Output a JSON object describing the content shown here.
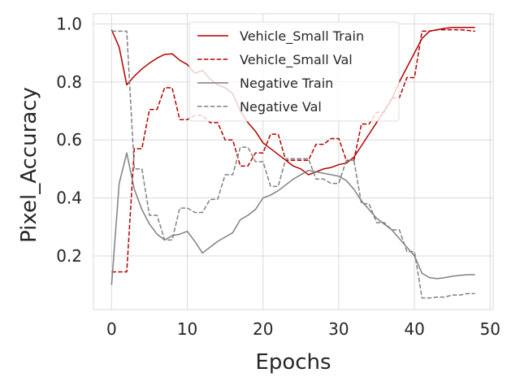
{
  "chart_data": {
    "type": "line",
    "title": "",
    "xlabel": "Epochs",
    "ylabel": "Pixel_Accuracy",
    "xlim": [
      -2.4,
      50.4
    ],
    "ylim": [
      0.015,
      1.035
    ],
    "xticks": [
      0,
      10,
      20,
      30,
      40,
      50
    ],
    "xtick_labels": [
      "0",
      "10",
      "20",
      "30",
      "40",
      "50"
    ],
    "yticks": [
      0.2,
      0.4,
      0.6,
      0.8,
      1.0
    ],
    "ytick_labels": [
      "0.2",
      "0.4",
      "0.6",
      "0.8",
      "1.0"
    ],
    "grid": true,
    "legend_position": "top-right",
    "x": [
      0,
      1,
      2,
      3,
      4,
      5,
      6,
      7,
      8,
      9,
      10,
      11,
      12,
      13,
      14,
      15,
      16,
      17,
      18,
      19,
      20,
      21,
      22,
      23,
      24,
      25,
      26,
      27,
      28,
      29,
      30,
      31,
      32,
      33,
      34,
      35,
      36,
      37,
      38,
      39,
      40,
      41,
      42,
      43,
      44,
      45,
      46,
      47,
      48
    ],
    "series": [
      {
        "name": "Vehicle_Small Train",
        "color": "#b30000",
        "dash": "solid",
        "values": [
          0.98,
          0.92,
          0.79,
          0.82,
          0.845,
          0.865,
          0.882,
          0.895,
          0.897,
          0.875,
          0.86,
          0.83,
          0.84,
          0.81,
          0.79,
          0.78,
          0.76,
          0.7,
          0.66,
          0.63,
          0.59,
          0.57,
          0.55,
          0.53,
          0.51,
          0.5,
          0.48,
          0.49,
          0.5,
          0.505,
          0.515,
          0.52,
          0.54,
          0.58,
          0.62,
          0.66,
          0.7,
          0.74,
          0.8,
          0.85,
          0.9,
          0.95,
          0.975,
          0.98,
          0.985,
          0.988,
          0.988,
          0.988,
          0.988
        ]
      },
      {
        "name": "Vehicle_Small Val",
        "color": "#b30000",
        "dash": "dashed",
        "values": [
          0.145,
          0.145,
          0.145,
          0.57,
          0.57,
          0.705,
          0.705,
          0.78,
          0.78,
          0.67,
          0.67,
          0.685,
          0.685,
          0.66,
          0.66,
          0.6,
          0.6,
          0.51,
          0.51,
          0.555,
          0.555,
          0.62,
          0.62,
          0.53,
          0.53,
          0.53,
          0.53,
          0.585,
          0.585,
          0.605,
          0.605,
          0.53,
          0.53,
          0.655,
          0.655,
          0.695,
          0.695,
          0.745,
          0.745,
          0.815,
          0.815,
          0.975,
          0.975,
          0.98,
          0.98,
          0.98,
          0.98,
          0.978,
          0.975
        ]
      },
      {
        "name": "Negative Train",
        "color": "#808080",
        "dash": "solid",
        "values": [
          0.1,
          0.45,
          0.555,
          0.43,
          0.36,
          0.31,
          0.275,
          0.255,
          0.27,
          0.275,
          0.285,
          0.25,
          0.21,
          0.23,
          0.25,
          0.265,
          0.28,
          0.325,
          0.34,
          0.36,
          0.4,
          0.41,
          0.425,
          0.445,
          0.465,
          0.48,
          0.495,
          0.49,
          0.485,
          0.48,
          0.475,
          0.46,
          0.43,
          0.39,
          0.36,
          0.33,
          0.31,
          0.29,
          0.26,
          0.23,
          0.2,
          0.14,
          0.125,
          0.122,
          0.125,
          0.13,
          0.133,
          0.135,
          0.135
        ]
      },
      {
        "name": "Negative Val",
        "color": "#808080",
        "dash": "dashed",
        "values": [
          0.975,
          0.975,
          0.975,
          0.5,
          0.5,
          0.34,
          0.34,
          0.255,
          0.255,
          0.365,
          0.365,
          0.35,
          0.35,
          0.395,
          0.395,
          0.48,
          0.48,
          0.575,
          0.575,
          0.525,
          0.525,
          0.44,
          0.44,
          0.535,
          0.535,
          0.535,
          0.535,
          0.465,
          0.465,
          0.45,
          0.45,
          0.53,
          0.53,
          0.38,
          0.38,
          0.315,
          0.315,
          0.29,
          0.29,
          0.215,
          0.215,
          0.055,
          0.055,
          0.058,
          0.058,
          0.065,
          0.065,
          0.07,
          0.07
        ]
      }
    ]
  }
}
